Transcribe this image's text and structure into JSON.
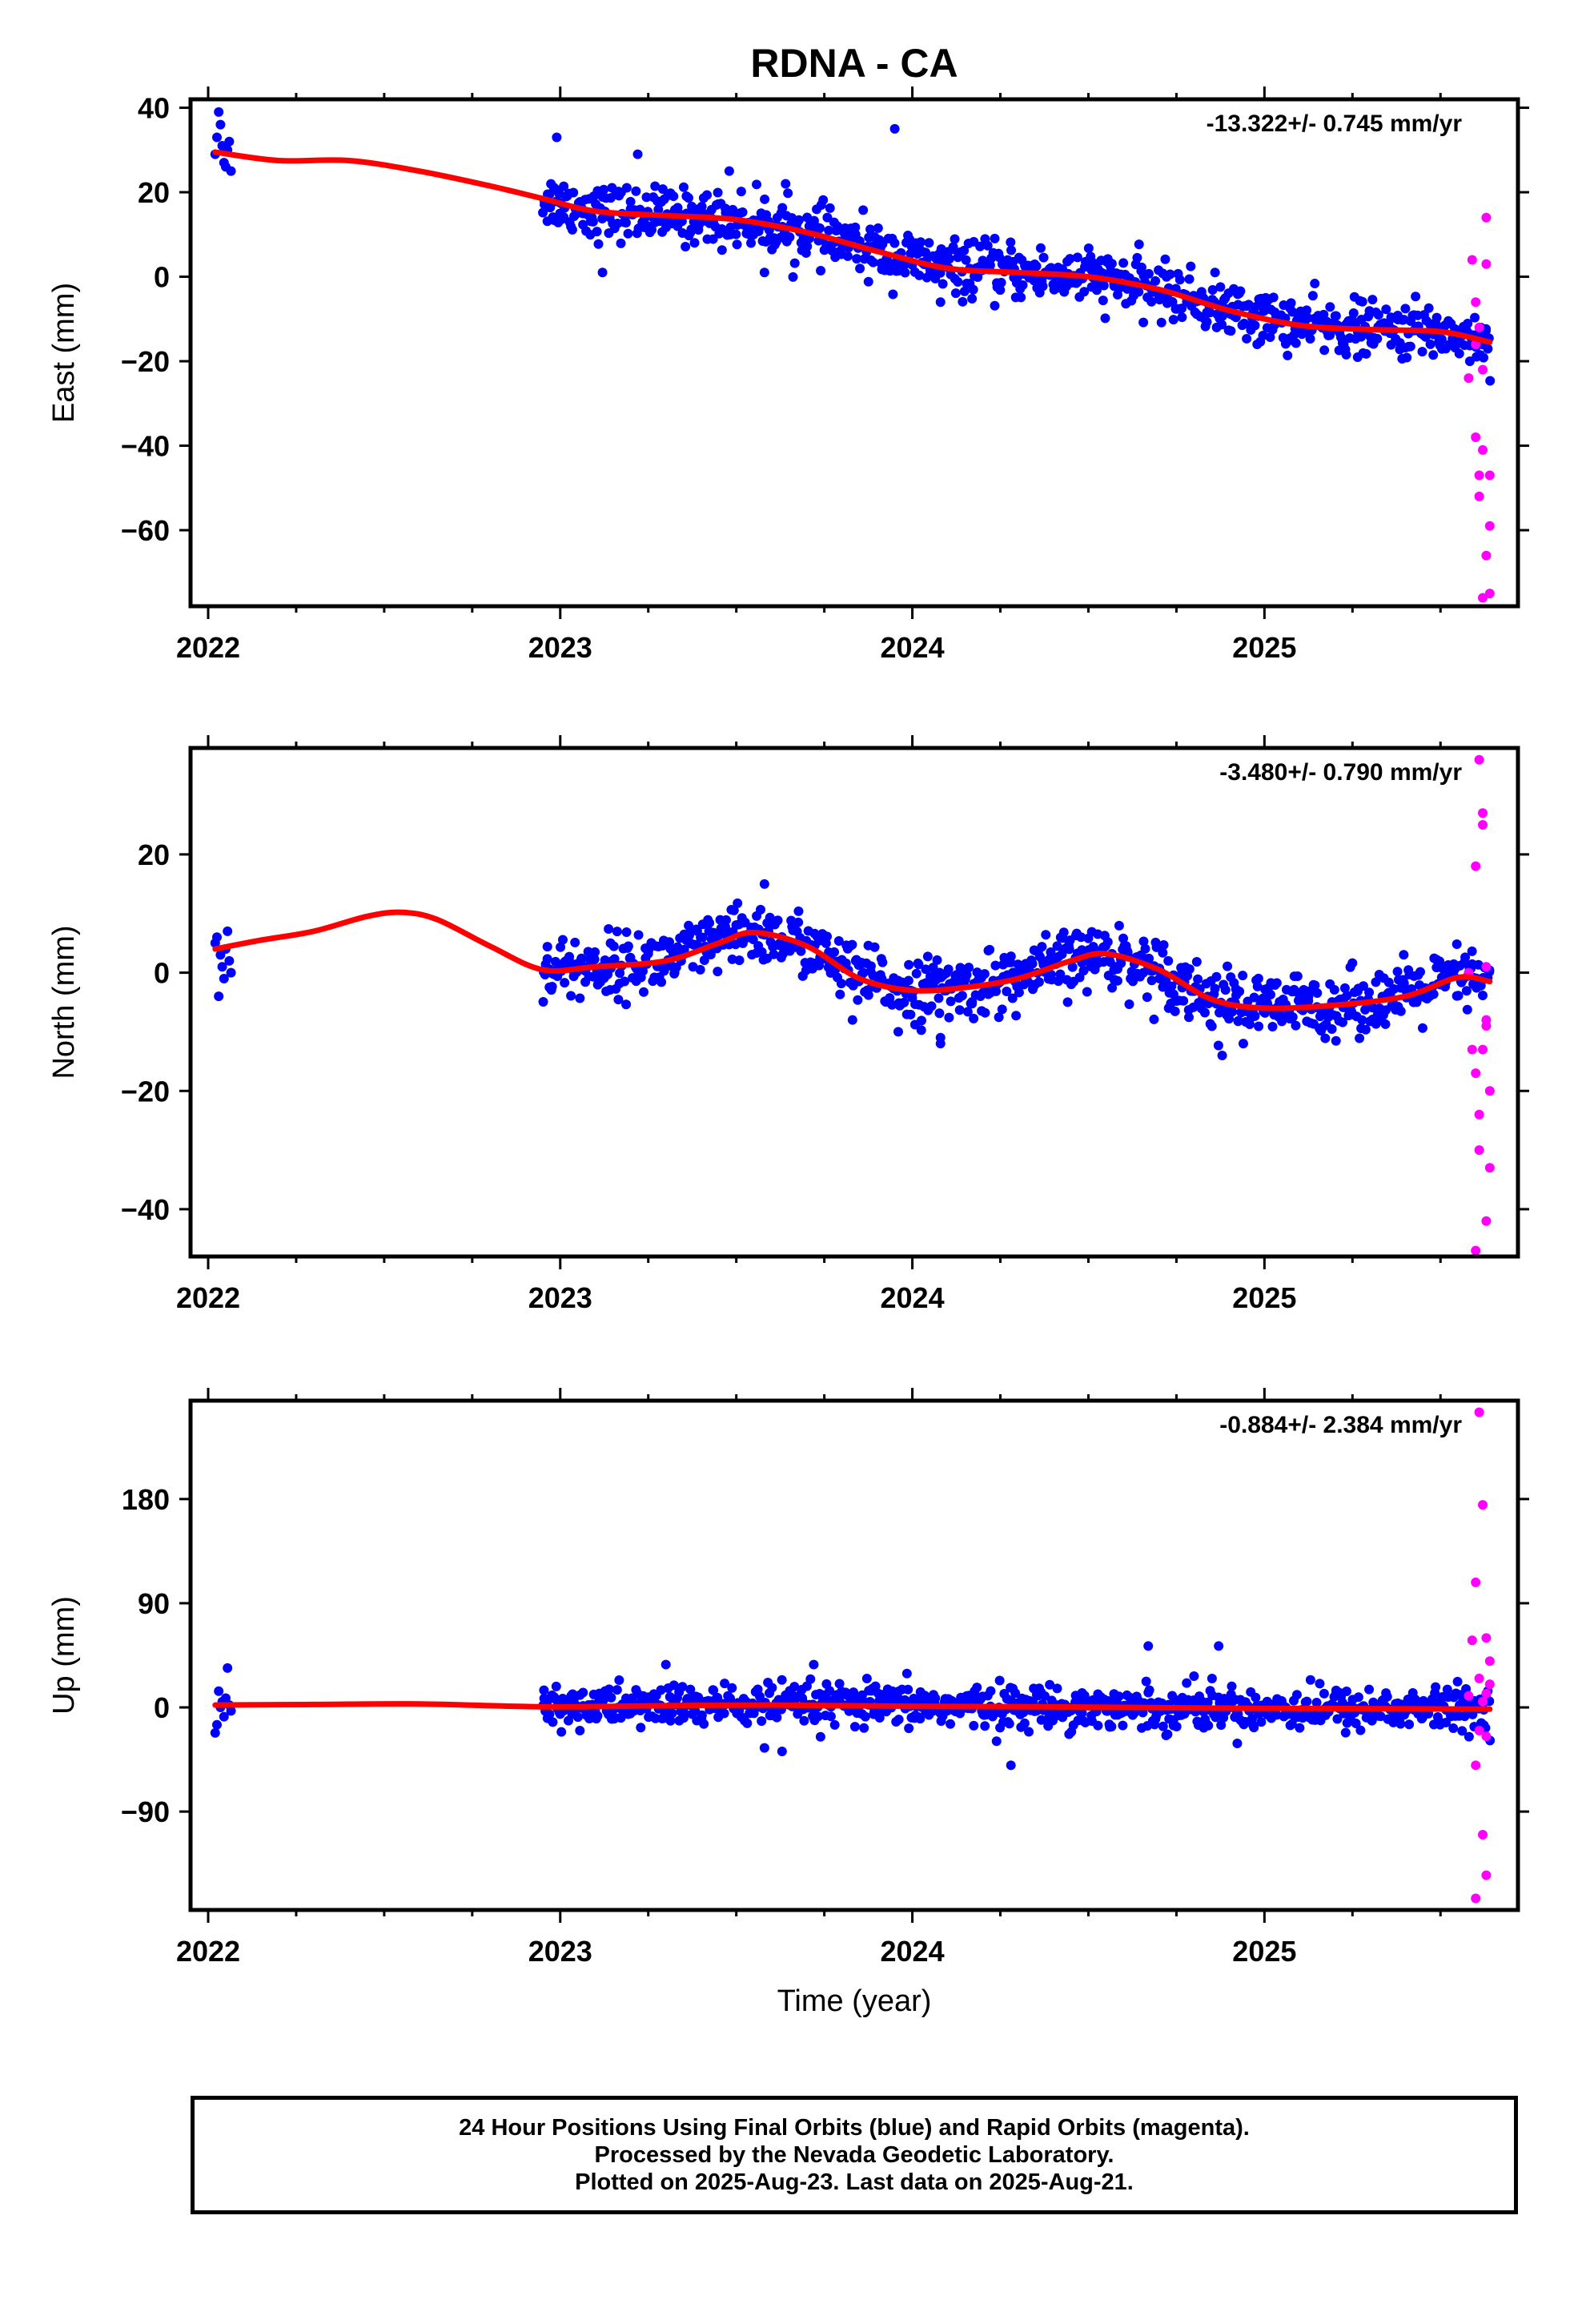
{
  "chart_data": [
    {
      "type": "scatter",
      "id": "east",
      "title": "RDNA - CA",
      "ylabel": "East (mm)",
      "xlabel": "",
      "xlim": [
        2021.95,
        2025.72
      ],
      "ylim": [
        -78,
        42
      ],
      "yticks": [
        40,
        20,
        0,
        -20,
        -40,
        -60
      ],
      "xticks": [
        2022,
        2023,
        2024,
        2025
      ],
      "xtick_labels": [
        "2022",
        "2023",
        "2024",
        "2025"
      ],
      "rate_label": "-13.322+/- 0.745 mm/yr",
      "colors": {
        "final": "#0000ff",
        "rapid": "#ff00ff",
        "fit": "#ff0000"
      },
      "final_points_early": [
        [
          2022.02,
          29
        ],
        [
          2022.025,
          33
        ],
        [
          2022.03,
          39
        ],
        [
          2022.035,
          36
        ],
        [
          2022.04,
          31
        ],
        [
          2022.045,
          27
        ],
        [
          2022.05,
          26
        ],
        [
          2022.055,
          30
        ],
        [
          2022.06,
          32
        ],
        [
          2022.065,
          25
        ]
      ],
      "final_main_noise": 3.2,
      "final_main_range": [
        2022.95,
        2025.64
      ],
      "final_outliers": [
        [
          2022.99,
          33
        ],
        [
          2023.12,
          1
        ],
        [
          2023.22,
          29
        ],
        [
          2023.48,
          25
        ],
        [
          2023.64,
          22
        ],
        [
          2023.95,
          35
        ],
        [
          2024.0,
          3
        ],
        [
          2024.08,
          -6
        ],
        [
          2023.58,
          1
        ]
      ],
      "rapid_points": [
        [
          2025.58,
          -24
        ],
        [
          2025.59,
          4
        ],
        [
          2025.6,
          -6
        ],
        [
          2025.6,
          -38
        ],
        [
          2025.61,
          -12
        ],
        [
          2025.61,
          -47
        ],
        [
          2025.62,
          -41
        ],
        [
          2025.62,
          -22
        ],
        [
          2025.63,
          14
        ],
        [
          2025.63,
          3
        ],
        [
          2025.63,
          -66
        ],
        [
          2025.64,
          -75
        ],
        [
          2025.64,
          -59
        ],
        [
          2025.64,
          -47
        ],
        [
          2025.62,
          -76
        ],
        [
          2025.61,
          -52
        ],
        [
          2025.6,
          -16
        ]
      ],
      "fit_curve": [
        [
          2022.02,
          29.5
        ],
        [
          2022.2,
          27.5
        ],
        [
          2022.4,
          27.5
        ],
        [
          2022.6,
          25.0
        ],
        [
          2022.8,
          21.5
        ],
        [
          2022.95,
          18.5
        ],
        [
          2023.1,
          15.5
        ],
        [
          2023.3,
          14.5
        ],
        [
          2023.5,
          13.5
        ],
        [
          2023.7,
          10.5
        ],
        [
          2023.9,
          6.0
        ],
        [
          2024.1,
          2.0
        ],
        [
          2024.3,
          1.0
        ],
        [
          2024.5,
          0.0
        ],
        [
          2024.7,
          -3.0
        ],
        [
          2024.9,
          -8.0
        ],
        [
          2025.1,
          -11.5
        ],
        [
          2025.3,
          -12.5
        ],
        [
          2025.5,
          -13.0
        ],
        [
          2025.64,
          -15.5
        ]
      ]
    },
    {
      "type": "scatter",
      "id": "north",
      "title": "",
      "ylabel": "North (mm)",
      "xlabel": "",
      "xlim": [
        2021.95,
        2025.72
      ],
      "ylim": [
        -48,
        38
      ],
      "yticks": [
        20,
        0,
        -20,
        -40
      ],
      "xticks": [
        2022,
        2023,
        2024,
        2025
      ],
      "xtick_labels": [
        "2022",
        "2023",
        "2024",
        "2025"
      ],
      "rate_label": "-3.480+/- 0.790 mm/yr",
      "colors": {
        "final": "#0000ff",
        "rapid": "#ff00ff",
        "fit": "#ff0000"
      },
      "final_points_early": [
        [
          2022.02,
          5
        ],
        [
          2022.025,
          6
        ],
        [
          2022.03,
          -4
        ],
        [
          2022.035,
          3
        ],
        [
          2022.04,
          1
        ],
        [
          2022.045,
          -1
        ],
        [
          2022.05,
          4
        ],
        [
          2022.055,
          7
        ],
        [
          2022.06,
          2
        ],
        [
          2022.065,
          0
        ]
      ],
      "final_main_noise": 2.6,
      "final_main_range": [
        2022.95,
        2025.64
      ],
      "final_outliers": [
        [
          2023.58,
          15
        ],
        [
          2023.96,
          -10
        ],
        [
          2024.08,
          -12
        ],
        [
          2024.08,
          -11
        ],
        [
          2024.88,
          -14
        ],
        [
          2024.94,
          -12
        ],
        [
          2023.83,
          -8
        ]
      ],
      "rapid_points": [
        [
          2025.58,
          0
        ],
        [
          2025.59,
          -13
        ],
        [
          2025.6,
          -17
        ],
        [
          2025.6,
          18
        ],
        [
          2025.61,
          -24
        ],
        [
          2025.61,
          -30
        ],
        [
          2025.62,
          27
        ],
        [
          2025.62,
          25
        ],
        [
          2025.63,
          -8
        ],
        [
          2025.63,
          1
        ],
        [
          2025.63,
          -42
        ],
        [
          2025.64,
          -33
        ],
        [
          2025.64,
          -20
        ],
        [
          2025.61,
          36
        ],
        [
          2025.6,
          -47
        ],
        [
          2025.62,
          -13
        ],
        [
          2025.63,
          -9
        ]
      ],
      "fit_curve": [
        [
          2022.02,
          4.0
        ],
        [
          2022.15,
          5.5
        ],
        [
          2022.3,
          7.0
        ],
        [
          2022.45,
          9.5
        ],
        [
          2022.55,
          10.2
        ],
        [
          2022.65,
          9.0
        ],
        [
          2022.8,
          4.5
        ],
        [
          2022.95,
          0.5
        ],
        [
          2023.1,
          1.0
        ],
        [
          2023.3,
          2.0
        ],
        [
          2023.45,
          5.0
        ],
        [
          2023.55,
          6.8
        ],
        [
          2023.7,
          4.5
        ],
        [
          2023.85,
          -1.0
        ],
        [
          2024.0,
          -3.0
        ],
        [
          2024.15,
          -2.5
        ],
        [
          2024.3,
          -1.0
        ],
        [
          2024.45,
          2.0
        ],
        [
          2024.55,
          3.2
        ],
        [
          2024.7,
          0.5
        ],
        [
          2024.85,
          -4.5
        ],
        [
          2025.0,
          -6.0
        ],
        [
          2025.2,
          -5.5
        ],
        [
          2025.4,
          -4.0
        ],
        [
          2025.55,
          -0.8
        ],
        [
          2025.64,
          -1.5
        ]
      ]
    },
    {
      "type": "scatter",
      "id": "up",
      "title": "",
      "ylabel": "Up (mm)",
      "xlabel": "Time (year)",
      "xlim": [
        2021.95,
        2025.72
      ],
      "ylim": [
        -175,
        265
      ],
      "yticks": [
        180,
        90,
        0,
        -90
      ],
      "xticks": [
        2022,
        2023,
        2024,
        2025
      ],
      "xtick_labels": [
        "2022",
        "2023",
        "2024",
        "2025"
      ],
      "rate_label": "-0.884+/- 2.384 mm/yr",
      "colors": {
        "final": "#0000ff",
        "rapid": "#ff00ff",
        "fit": "#ff0000"
      },
      "final_points_early": [
        [
          2022.02,
          -22
        ],
        [
          2022.025,
          -15
        ],
        [
          2022.03,
          14
        ],
        [
          2022.035,
          0
        ],
        [
          2022.04,
          5
        ],
        [
          2022.045,
          -8
        ],
        [
          2022.05,
          8
        ],
        [
          2022.055,
          34
        ],
        [
          2022.06,
          2
        ],
        [
          2022.065,
          -3
        ]
      ],
      "final_main_noise": 9.0,
      "final_main_range": [
        2022.95,
        2025.64
      ],
      "final_outliers": [
        [
          2023.3,
          37
        ],
        [
          2023.58,
          -35
        ],
        [
          2023.63,
          -38
        ],
        [
          2023.72,
          37
        ],
        [
          2024.28,
          -50
        ],
        [
          2024.67,
          53
        ],
        [
          2024.87,
          53
        ],
        [
          2024.8,
          27
        ]
      ],
      "rapid_points": [
        [
          2025.58,
          10
        ],
        [
          2025.59,
          58
        ],
        [
          2025.6,
          108
        ],
        [
          2025.6,
          -50
        ],
        [
          2025.61,
          25
        ],
        [
          2025.61,
          -20
        ],
        [
          2025.62,
          175
        ],
        [
          2025.62,
          -110
        ],
        [
          2025.63,
          60
        ],
        [
          2025.63,
          12
        ],
        [
          2025.63,
          -145
        ],
        [
          2025.64,
          20
        ],
        [
          2025.64,
          40
        ],
        [
          2025.61,
          255
        ],
        [
          2025.6,
          -165
        ],
        [
          2025.62,
          5
        ],
        [
          2025.63,
          -25
        ]
      ],
      "fit_curve": [
        [
          2022.02,
          2.0
        ],
        [
          2022.3,
          2.5
        ],
        [
          2022.6,
          3.0
        ],
        [
          2022.95,
          0.5
        ],
        [
          2023.3,
          1.5
        ],
        [
          2023.6,
          2.0
        ],
        [
          2024.0,
          1.0
        ],
        [
          2024.4,
          0.5
        ],
        [
          2024.8,
          -0.5
        ],
        [
          2025.2,
          -1.0
        ],
        [
          2025.64,
          -1.5
        ]
      ]
    }
  ],
  "footer": {
    "line1": "24 Hour Positions Using Final Orbits (blue) and Rapid Orbits (magenta).",
    "line2": "Processed by the Nevada Geodetic Laboratory.",
    "line3": "Plotted on 2025-Aug-23. Last data on 2025-Aug-21."
  }
}
